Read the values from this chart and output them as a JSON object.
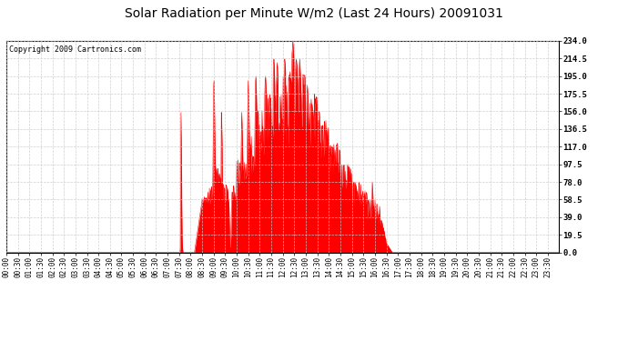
{
  "title": "Solar Radiation per Minute W/m2 (Last 24 Hours) 20091031",
  "copyright": "Copyright 2009 Cartronics.com",
  "bg_color": "#ffffff",
  "plot_bg_color": "#ffffff",
  "bar_color": "#ff0000",
  "grid_color": "#bbbbbb",
  "ymin": 0.0,
  "ymax": 234.0,
  "yticks": [
    0.0,
    19.5,
    39.0,
    58.5,
    78.0,
    97.5,
    117.0,
    136.5,
    156.0,
    175.5,
    195.0,
    214.5,
    234.0
  ],
  "total_minutes": 1440,
  "xtick_minutes": [
    0,
    30,
    60,
    90,
    120,
    150,
    180,
    210,
    240,
    270,
    300,
    330,
    360,
    390,
    420,
    450,
    480,
    510,
    540,
    570,
    600,
    630,
    660,
    690,
    720,
    750,
    780,
    810,
    840,
    870,
    900,
    930,
    960,
    990,
    1020,
    1050,
    1080,
    1110,
    1140,
    1170,
    1200,
    1230,
    1260,
    1290,
    1320,
    1350,
    1380,
    1410
  ],
  "xtick_labels": [
    "00:00",
    "00:30",
    "01:00",
    "01:30",
    "02:00",
    "02:30",
    "03:00",
    "03:30",
    "04:00",
    "04:30",
    "05:00",
    "05:30",
    "06:00",
    "06:30",
    "07:00",
    "07:30",
    "08:00",
    "08:30",
    "09:00",
    "09:30",
    "10:00",
    "10:30",
    "11:00",
    "11:30",
    "12:00",
    "12:30",
    "13:00",
    "13:30",
    "14:00",
    "14:30",
    "15:00",
    "15:30",
    "16:00",
    "16:30",
    "17:00",
    "17:30",
    "18:00",
    "18:30",
    "19:00",
    "19:30",
    "20:00",
    "20:30",
    "21:00",
    "21:30",
    "22:00",
    "22:30",
    "23:00",
    "23:30"
  ],
  "title_fontsize": 10,
  "copyright_fontsize": 6,
  "tick_fontsize": 5.5,
  "ytick_fontsize": 6.5
}
